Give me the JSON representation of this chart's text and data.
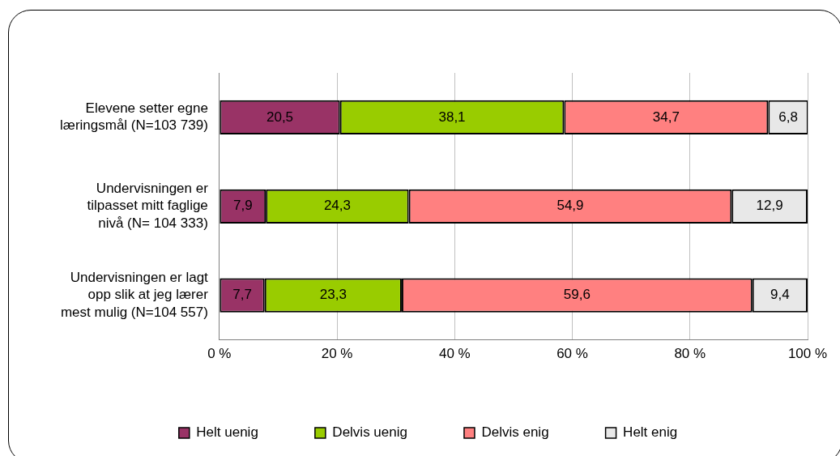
{
  "chart_data": {
    "type": "bar",
    "orientation": "horizontal",
    "stacked": true,
    "categories": [
      "Elevene setter egne læringsmål (N=103 739)",
      "Undervisningen er tilpasset mitt faglige nivå (N= 104 333)",
      "Undervisningen er lagt opp slik at jeg lærer mest mulig (N=104 557)"
    ],
    "series": [
      {
        "name": "Helt uenig",
        "color": "#993366",
        "values": [
          20.5,
          7.9,
          7.7
        ],
        "value_labels": [
          "20,5",
          "7,9",
          "7,7"
        ]
      },
      {
        "name": "Delvis uenig",
        "color": "#99cc00",
        "values": [
          38.1,
          24.3,
          23.3
        ],
        "value_labels": [
          "38,1",
          "24,3",
          "23,3"
        ]
      },
      {
        "name": "Delvis enig",
        "color": "#ff8080",
        "values": [
          34.7,
          54.9,
          59.6
        ],
        "value_labels": [
          "34,7",
          "54,9",
          "59,6"
        ]
      },
      {
        "name": "Helt enig",
        "color": "#e8e8e8",
        "values": [
          6.8,
          12.9,
          9.4
        ],
        "value_labels": [
          "6,8",
          "12,9",
          "9,4"
        ]
      }
    ],
    "xlim": [
      0,
      100
    ],
    "xticks": [
      {
        "value": 0,
        "label": "0 %"
      },
      {
        "value": 20,
        "label": "20 %"
      },
      {
        "value": 40,
        "label": "40 %"
      },
      {
        "value": 60,
        "label": "60 %"
      },
      {
        "value": 80,
        "label": "80 %"
      },
      {
        "value": 100,
        "label": "100 %"
      }
    ],
    "grid": "x",
    "legend": "bottom"
  }
}
